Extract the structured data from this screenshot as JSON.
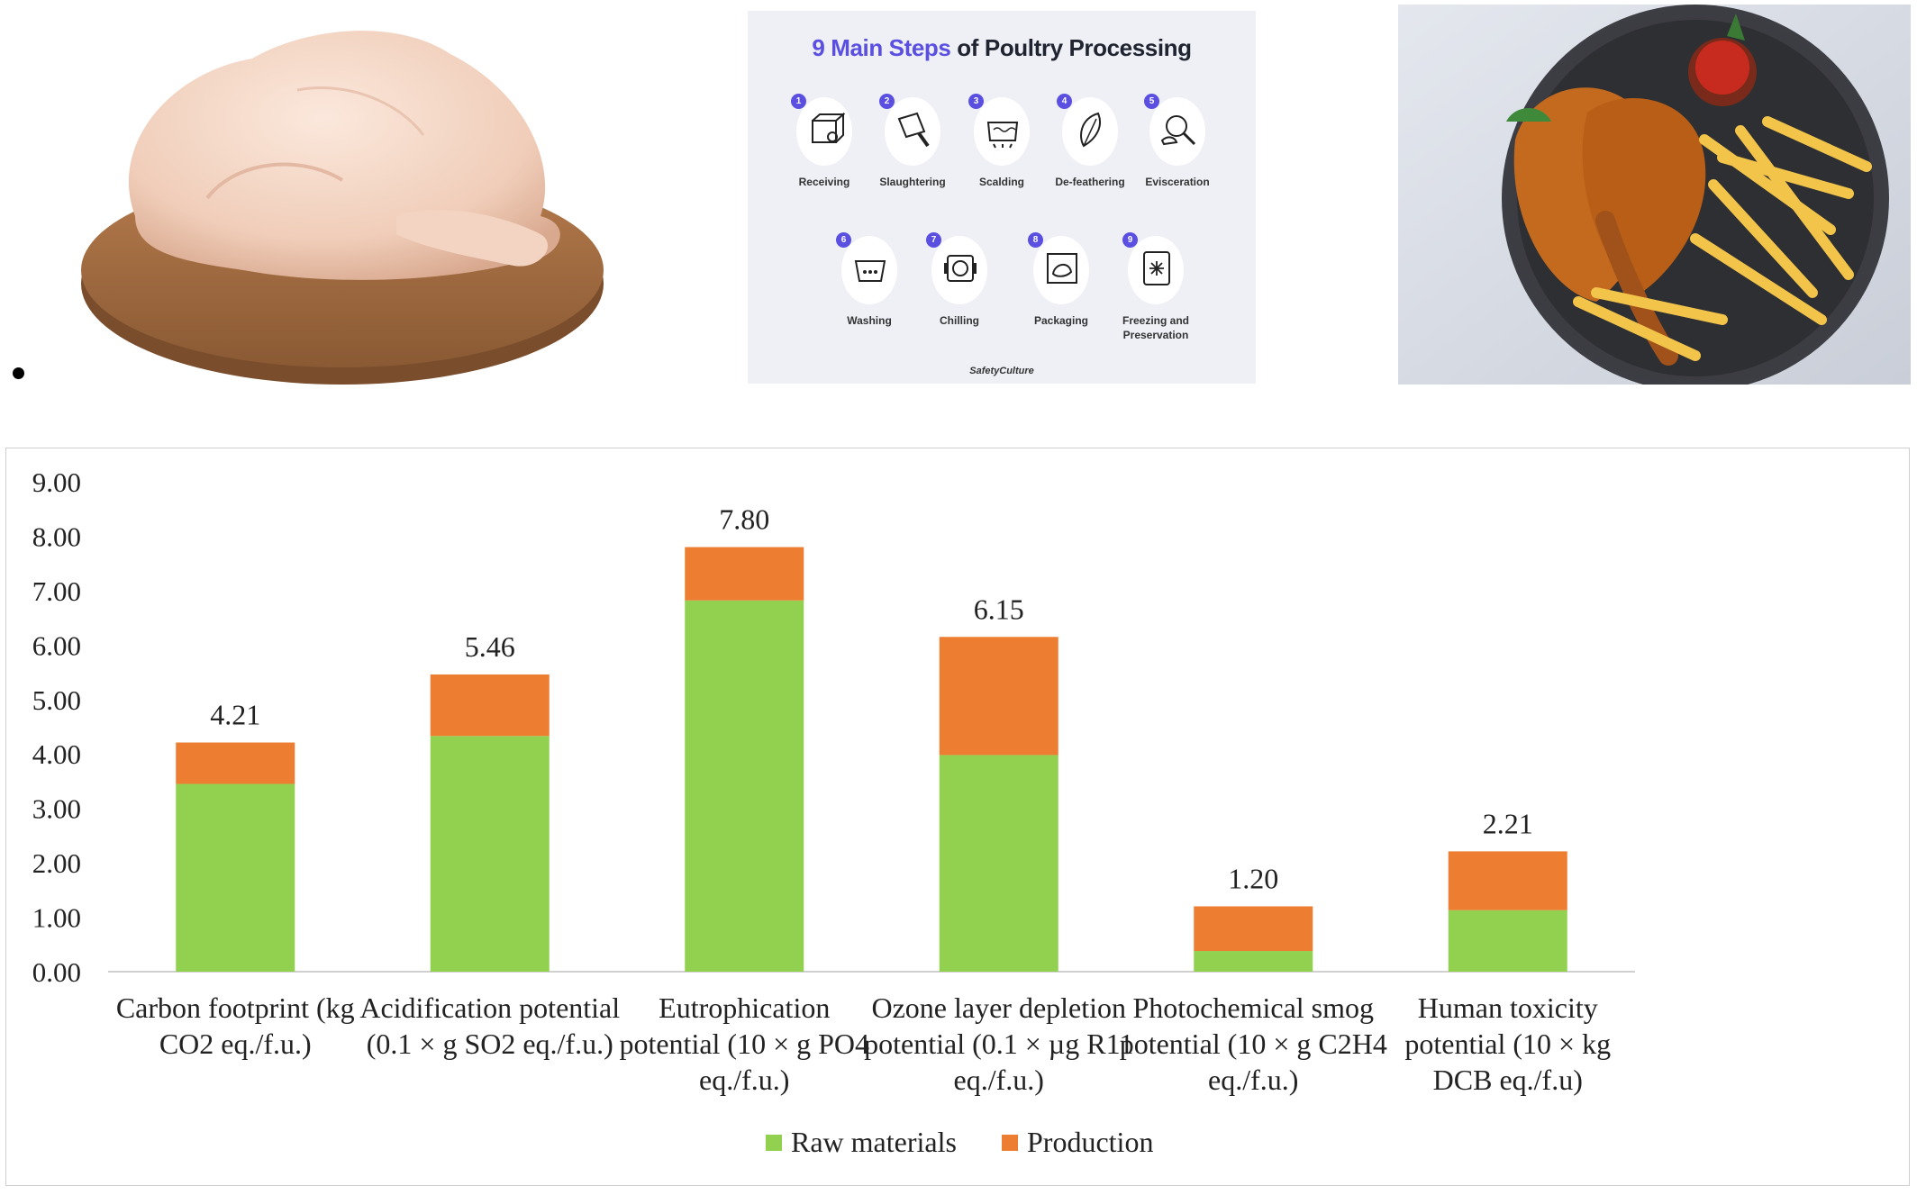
{
  "infographic": {
    "title_accent": "9 Main Steps",
    "title_rest": " of Poultry Processing",
    "steps": [
      {
        "num": "1",
        "label": "Receiving",
        "icon": "box-icon"
      },
      {
        "num": "2",
        "label": "Slaughtering",
        "icon": "cleaver-icon"
      },
      {
        "num": "3",
        "label": "Scalding",
        "icon": "pot-icon"
      },
      {
        "num": "4",
        "label": "De-feathering",
        "icon": "feather-icon"
      },
      {
        "num": "5",
        "label": "Evisceration",
        "icon": "magnifier-icon"
      },
      {
        "num": "6",
        "label": "Washing",
        "icon": "basin-icon"
      },
      {
        "num": "7",
        "label": "Chilling",
        "icon": "chiller-icon"
      },
      {
        "num": "8",
        "label": "Packaging",
        "icon": "package-icon"
      },
      {
        "num": "9",
        "label": "Freezing and Preservation",
        "icon": "freezer-icon"
      }
    ],
    "brand": "SafetyCulture"
  },
  "chart_data": {
    "type": "bar",
    "stacked": true,
    "categories": [
      [
        "Carbon footprint (kg",
        "CO2 eq./f.u.)"
      ],
      [
        "Acidification potential",
        "(0.1 × g SO2 eq./f.u.)"
      ],
      [
        "Eutrophication",
        "potential (10 × g PO4",
        "eq./f.u.)"
      ],
      [
        "Ozone layer depletion",
        "potential (0.1 × µg R11",
        "eq./f.u.)"
      ],
      [
        "Photochemical smog",
        "potential (10 × g C2H4",
        "eq./f.u.)"
      ],
      [
        "Human toxicity",
        "potential (10 × kg",
        "DCB eq./f.u)"
      ]
    ],
    "series": [
      {
        "name": "Raw materials",
        "color": "#92d050",
        "values": [
          3.45,
          4.33,
          6.82,
          3.98,
          0.38,
          1.13
        ]
      },
      {
        "name": "Production",
        "color": "#ed7d31",
        "values": [
          0.76,
          1.13,
          0.98,
          2.17,
          0.82,
          1.08
        ]
      }
    ],
    "totals": [
      "4.21",
      "5.46",
      "7.80",
      "6.15",
      "1.20",
      "2.21"
    ],
    "yticks": [
      "0.00",
      "1.00",
      "2.00",
      "3.00",
      "4.00",
      "5.00",
      "6.00",
      "7.00",
      "8.00",
      "9.00"
    ],
    "ylim": [
      0,
      9
    ],
    "legend_position": "bottom"
  }
}
